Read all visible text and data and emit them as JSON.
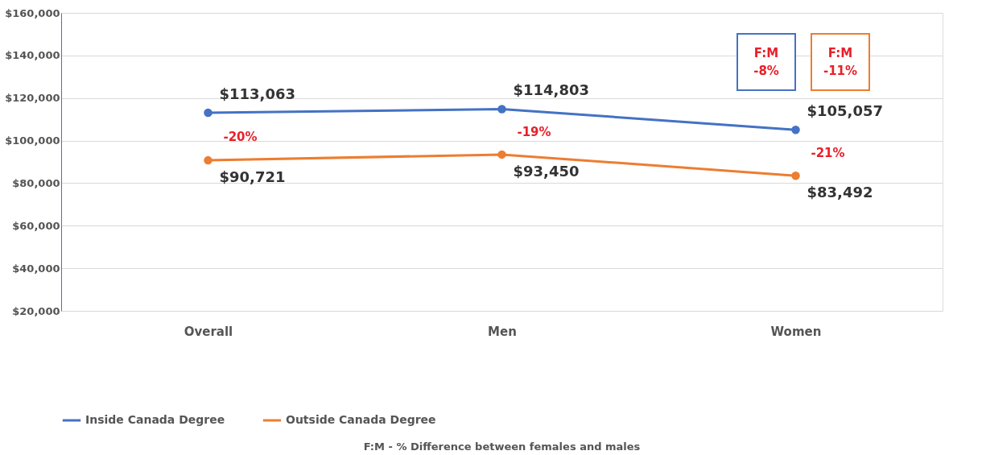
{
  "chart_data": {
    "type": "line",
    "categories": [
      "Overall",
      "Men",
      "Women"
    ],
    "series": [
      {
        "name": "Inside Canada Degree",
        "color": "#4472c4",
        "values": [
          113063,
          114803,
          105057
        ],
        "value_labels": [
          "$113,063",
          "$114,803",
          "$105,057"
        ]
      },
      {
        "name": "Outside Canada Degree",
        "color": "#ed7d31",
        "values": [
          90721,
          93450,
          83492
        ],
        "value_labels": [
          "$90,721",
          "$93,450",
          "$83,492"
        ]
      }
    ],
    "ylim": [
      20000,
      160000
    ],
    "yticks": [
      {
        "value": 20000,
        "label": "$20,000"
      },
      {
        "value": 40000,
        "label": "$40,000"
      },
      {
        "value": 60000,
        "label": "$60,000"
      },
      {
        "value": 80000,
        "label": "$80,000"
      },
      {
        "value": 100000,
        "label": "$100,000"
      },
      {
        "value": 120000,
        "label": "$120,000"
      },
      {
        "value": 140000,
        "label": "$140,000"
      },
      {
        "value": 160000,
        "label": "$160,000"
      }
    ],
    "annotations": [
      "-20%",
      "-19%",
      "-21%",
      "F:M\n-8%",
      "F:M\n-11%",
      "F:M  -  % Difference between females and males"
    ],
    "grid": "y",
    "legend": "bottom",
    "marker": "circle",
    "line_style": "solid"
  }
}
